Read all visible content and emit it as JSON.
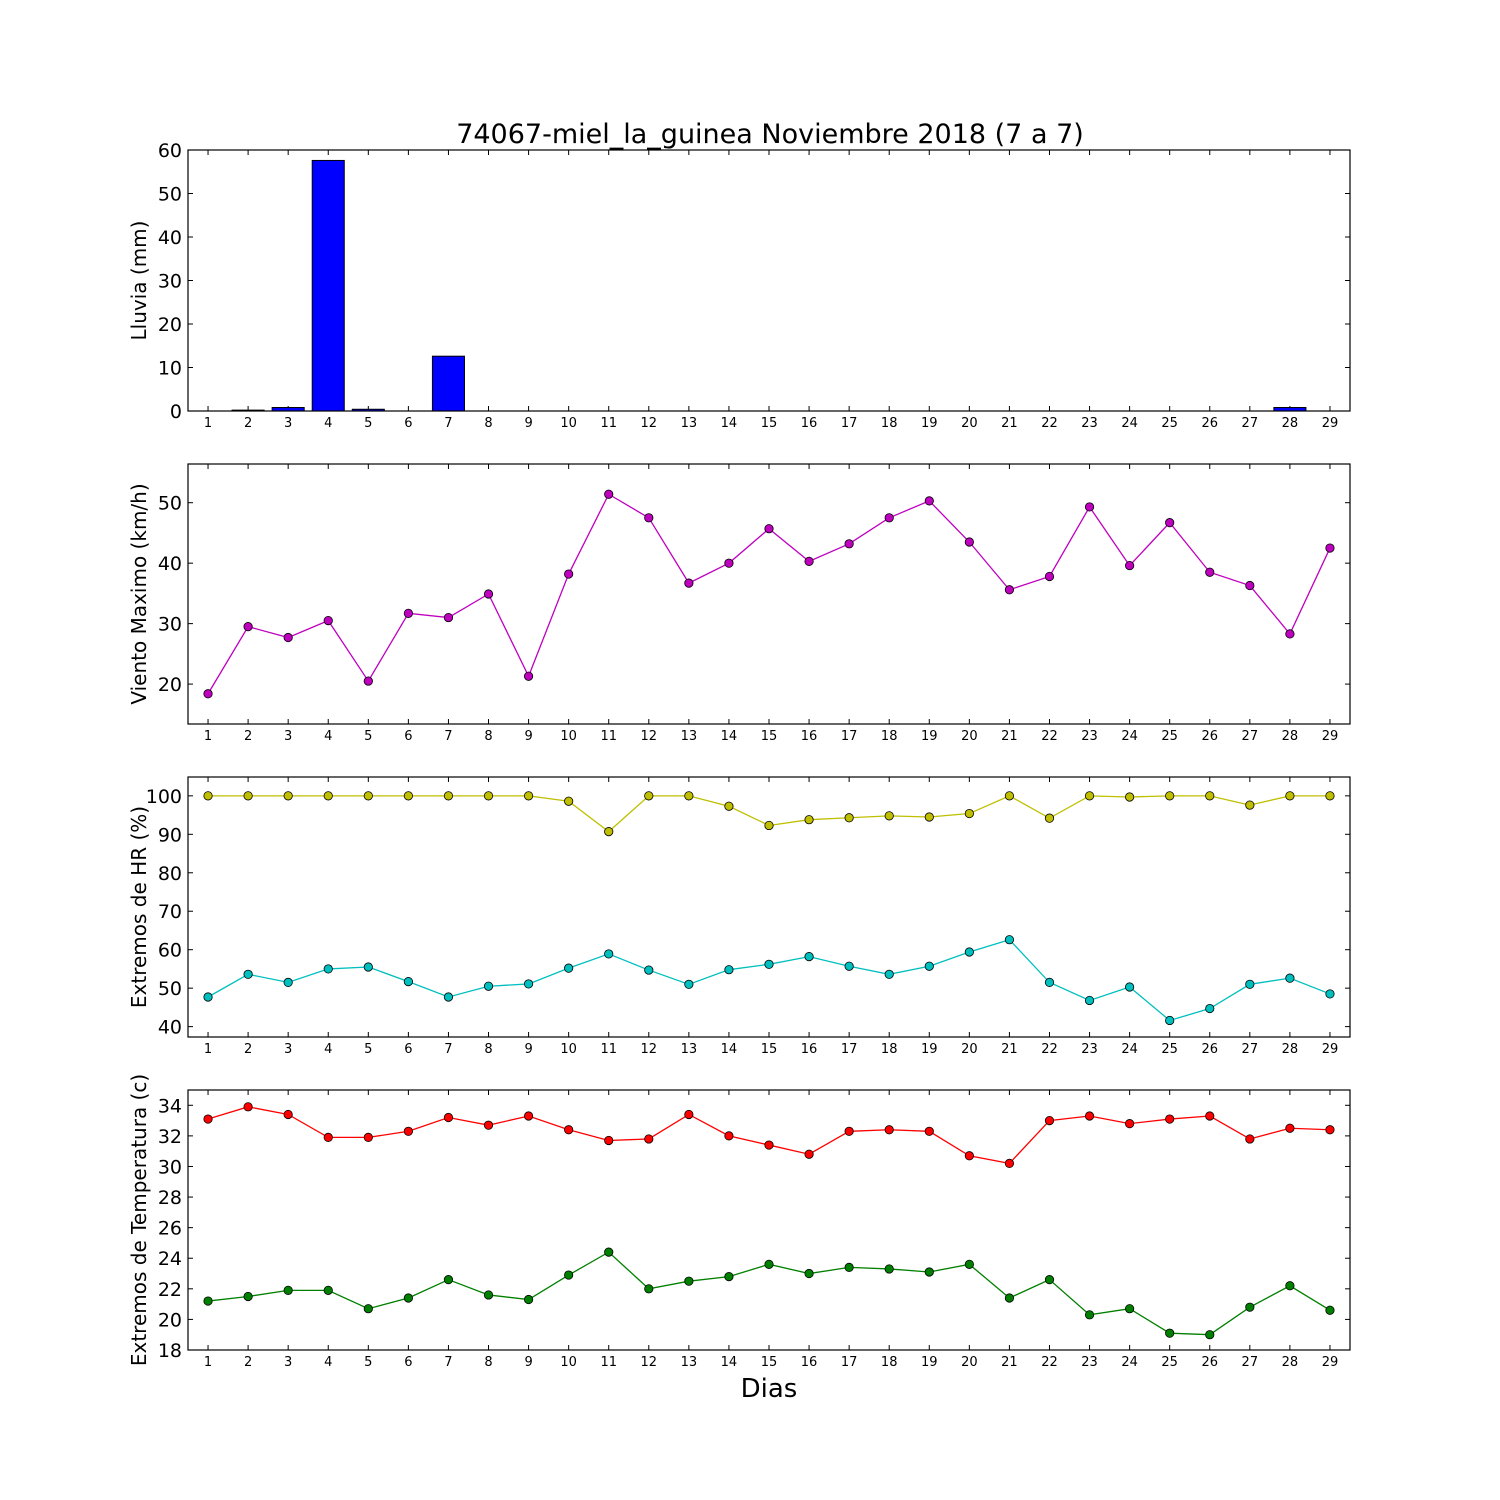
{
  "figure": {
    "title": "74067-miel_la_guinea Noviembre 2018  (7 a 7)",
    "xlabel": "Dias"
  },
  "chart_data": [
    {
      "type": "bar",
      "ylabel": "Lluvia (mm)",
      "categories": [
        "1",
        "2",
        "3",
        "4",
        "5",
        "6",
        "7",
        "8",
        "9",
        "10",
        "11",
        "12",
        "13",
        "14",
        "15",
        "16",
        "17",
        "18",
        "19",
        "20",
        "21",
        "22",
        "23",
        "24",
        "25",
        "26",
        "27",
        "28",
        "29"
      ],
      "values": [
        0,
        0.2,
        0.8,
        57.6,
        0.4,
        0,
        12.6,
        0,
        0,
        0,
        0,
        0,
        0,
        0,
        0,
        0,
        0,
        0,
        0,
        0,
        0,
        0,
        0,
        0,
        0,
        0,
        0,
        0.8,
        0
      ],
      "ylim": [
        0,
        60
      ],
      "yticks": [
        0,
        10,
        20,
        30,
        40,
        50,
        60
      ],
      "color": "#0000ff",
      "grid": false
    },
    {
      "type": "line",
      "ylabel": "Viento Maximo (km/h)",
      "x": [
        1,
        2,
        3,
        4,
        5,
        6,
        7,
        8,
        9,
        10,
        11,
        12,
        13,
        14,
        15,
        16,
        17,
        18,
        19,
        20,
        21,
        22,
        23,
        24,
        25,
        26,
        27,
        28,
        29
      ],
      "series": [
        {
          "color": "#bf00bf",
          "values": [
            18.4,
            29.5,
            27.7,
            30.5,
            20.5,
            31.7,
            31.0,
            34.9,
            21.3,
            38.2,
            51.4,
            47.5,
            36.7,
            40.0,
            45.7,
            40.3,
            43.2,
            47.5,
            50.3,
            43.5,
            35.6,
            37.8,
            49.3,
            39.6,
            46.7,
            38.5,
            36.3,
            28.3,
            42.5
          ]
        }
      ],
      "ylim": [
        13.4,
        56.4
      ],
      "yticks": [
        20,
        30,
        40,
        50
      ],
      "grid": false
    },
    {
      "type": "line",
      "ylabel": "Extremos de HR (%)",
      "x": [
        1,
        2,
        3,
        4,
        5,
        6,
        7,
        8,
        9,
        10,
        11,
        12,
        13,
        14,
        15,
        16,
        17,
        18,
        19,
        20,
        21,
        22,
        23,
        24,
        25,
        26,
        27,
        28,
        29
      ],
      "series": [
        {
          "color": "#bfbf00",
          "values": [
            100,
            100,
            100,
            100,
            100,
            100,
            100,
            100,
            100,
            98.6,
            90.7,
            100,
            100,
            97.3,
            92.3,
            93.8,
            94.3,
            94.8,
            94.5,
            95.4,
            100,
            94.2,
            100,
            99.7,
            100,
            100,
            97.6,
            100,
            100
          ]
        },
        {
          "color": "#00bfbf",
          "values": [
            47.7,
            53.6,
            51.5,
            55.0,
            55.5,
            51.7,
            47.7,
            50.5,
            51.1,
            55.2,
            58.9,
            54.7,
            51.0,
            54.8,
            56.2,
            58.2,
            55.7,
            53.6,
            55.7,
            59.4,
            62.6,
            51.5,
            46.8,
            50.3,
            41.6,
            44.7,
            51.0,
            52.6,
            48.5
          ]
        }
      ],
      "ylim": [
        37.3,
        104.9
      ],
      "yticks": [
        40,
        50,
        60,
        70,
        80,
        90,
        100
      ],
      "grid": false
    },
    {
      "type": "line",
      "ylabel": "Extremos de Temperatura (c)",
      "x": [
        1,
        2,
        3,
        4,
        5,
        6,
        7,
        8,
        9,
        10,
        11,
        12,
        13,
        14,
        15,
        16,
        17,
        18,
        19,
        20,
        21,
        22,
        23,
        24,
        25,
        26,
        27,
        28,
        29
      ],
      "series": [
        {
          "color": "#ff0000",
          "values": [
            33.1,
            33.9,
            33.4,
            31.9,
            31.9,
            32.3,
            33.2,
            32.7,
            33.3,
            32.4,
            31.7,
            31.8,
            33.4,
            32.0,
            31.4,
            30.8,
            32.3,
            32.4,
            32.3,
            30.7,
            30.2,
            33.0,
            33.3,
            32.8,
            33.1,
            33.3,
            31.8,
            32.5,
            32.4
          ]
        },
        {
          "color": "#008000",
          "values": [
            21.2,
            21.5,
            21.9,
            21.9,
            20.7,
            21.4,
            22.6,
            21.6,
            21.3,
            22.9,
            24.4,
            22.0,
            22.5,
            22.8,
            23.6,
            23.0,
            23.4,
            23.3,
            23.1,
            23.6,
            21.4,
            22.6,
            20.3,
            20.7,
            19.1,
            19.0,
            20.8,
            22.2,
            20.6
          ]
        }
      ],
      "ylim": [
        18,
        35
      ],
      "yticks": [
        18,
        20,
        22,
        24,
        26,
        28,
        30,
        32,
        34
      ],
      "grid": false
    }
  ]
}
